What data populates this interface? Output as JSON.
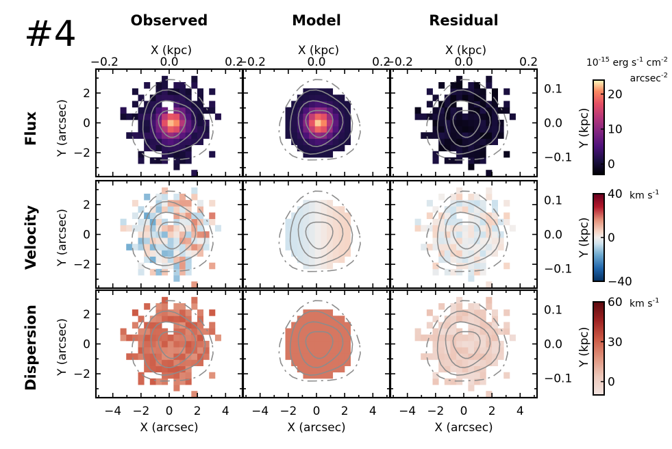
{
  "chart_data": {
    "type": "heatmap",
    "panel_label": "#4",
    "column_titles": [
      "Observed",
      "Model",
      "Residual"
    ],
    "row_titles": [
      "Flux",
      "Velocity",
      "Dispersion"
    ],
    "xlabel_bottom": "X (arcsec)",
    "ylabel_left": "Y (arcsec)",
    "xlabel_top": "X (kpc)",
    "ylabel_right": "Y (kpc)",
    "x_arcsec_range": [
      -5.2,
      5.2
    ],
    "y_arcsec_range": [
      -3.6,
      3.6
    ],
    "x_arcsec_ticks": [
      "−4",
      "−2",
      "0",
      "2",
      "4"
    ],
    "y_arcsec_ticks": [
      "2",
      "0",
      "−2"
    ],
    "x_kpc_ticks": [
      [
        "−0.2",
        "0.0",
        "0.2"
      ],
      [
        "−0.2",
        "0.0",
        "0.2"
      ],
      [
        "−0.2",
        "0.0",
        "0.2"
      ]
    ],
    "y_kpc_ticks": [
      "0.1",
      "0.0",
      "−0.1"
    ],
    "colorbars": [
      {
        "quantity": "Flux",
        "unit_main": "10",
        "unit_exp": "-15",
        "unit_rest": " erg s",
        "unit_rest_exp": "-1",
        "unit_rest2": " cm",
        "unit_rest2_exp": "-2",
        "unit_line2": "arcsec",
        "unit_line2_exp": "-2",
        "range": [
          -3,
          24
        ],
        "ticks": [
          "20",
          "10",
          "0"
        ],
        "colormap": "magma"
      },
      {
        "quantity": "Velocity",
        "unit": "km s",
        "unit_exp": "-1",
        "range": [
          -40,
          40
        ],
        "ticks": [
          "40",
          "0",
          "−40"
        ],
        "colormap": "RdBu_r"
      },
      {
        "quantity": "Dispersion",
        "unit": "km s",
        "unit_exp": "-1",
        "range": [
          -10,
          60
        ],
        "ticks": [
          "60",
          "30",
          "0"
        ],
        "colormap": "Reds"
      }
    ],
    "source_center_arcsec": [
      0.2,
      0.0
    ],
    "source_radius_arcsec": 2.4,
    "velocity_amplitude_km_s": 6,
    "model_dispersion_km_s": 25,
    "observed_peak_flux": 22,
    "contours": "flux isophotes overlaid (gray)"
  },
  "colors": {
    "contour": "#8c8c8c",
    "frame": "#000000"
  }
}
